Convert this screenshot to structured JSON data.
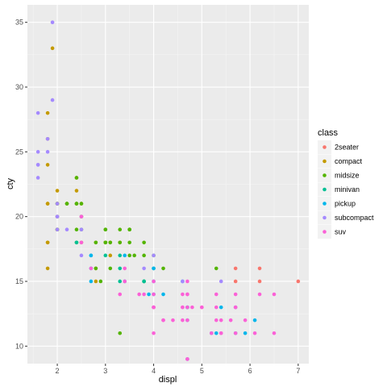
{
  "chart_data": {
    "type": "scatter",
    "xlabel": "displ",
    "ylabel": "cty",
    "xlim": [
      1.38,
      7.22
    ],
    "ylim": [
      8.65,
      36.35
    ],
    "x_ticks": [
      2,
      3,
      4,
      5,
      6,
      7
    ],
    "y_ticks": [
      10,
      15,
      20,
      25,
      30,
      35
    ],
    "grid": true,
    "legend": {
      "title": "class",
      "placement": "right",
      "entries": [
        {
          "name": "2seater",
          "color": "#F8766D"
        },
        {
          "name": "compact",
          "color": "#C49A00"
        },
        {
          "name": "midsize",
          "color": "#53B400"
        },
        {
          "name": "minivan",
          "color": "#00C094"
        },
        {
          "name": "pickup",
          "color": "#00B6EB"
        },
        {
          "name": "subcompact",
          "color": "#A58AFF"
        },
        {
          "name": "suv",
          "color": "#FB61D7"
        }
      ]
    },
    "series": [
      {
        "name": "2seater",
        "color": "#F8766D",
        "points": [
          [
            5.7,
            16
          ],
          [
            5.7,
            15
          ],
          [
            6.2,
            16
          ],
          [
            6.2,
            15
          ],
          [
            7.0,
            15
          ]
        ]
      },
      {
        "name": "compact",
        "color": "#C49A00",
        "points": [
          [
            1.8,
            18
          ],
          [
            1.8,
            21
          ],
          [
            2.0,
            20
          ],
          [
            2.0,
            21
          ],
          [
            2.8,
            16
          ],
          [
            2.8,
            18
          ],
          [
            3.1,
            18
          ],
          [
            1.8,
            18
          ],
          [
            1.8,
            16
          ],
          [
            2.0,
            20
          ],
          [
            2.0,
            19
          ],
          [
            2.8,
            15
          ],
          [
            3.1,
            17
          ],
          [
            1.9,
            33
          ],
          [
            2.0,
            21
          ],
          [
            2.0,
            19
          ],
          [
            2.0,
            22
          ],
          [
            1.8,
            21
          ],
          [
            1.8,
            24
          ],
          [
            1.8,
            26
          ],
          [
            1.8,
            28
          ],
          [
            2.2,
            21
          ],
          [
            2.4,
            21
          ],
          [
            2.5,
            21
          ],
          [
            2.5,
            20
          ],
          [
            2.4,
            23
          ],
          [
            2.4,
            22
          ],
          [
            3.0,
            18
          ],
          [
            3.0,
            18
          ],
          [
            3.3,
            18
          ],
          [
            2.5,
            18
          ]
        ]
      },
      {
        "name": "midsize",
        "color": "#53B400",
        "points": [
          [
            2.4,
            18
          ],
          [
            2.4,
            21
          ],
          [
            3.1,
            18
          ],
          [
            3.5,
            19
          ],
          [
            3.6,
            17
          ],
          [
            2.4,
            19
          ],
          [
            3.0,
            18
          ],
          [
            3.3,
            19
          ],
          [
            3.3,
            18
          ],
          [
            3.5,
            19
          ],
          [
            3.8,
            17
          ],
          [
            3.8,
            18
          ],
          [
            4.0,
            17
          ],
          [
            4.2,
            16
          ],
          [
            2.2,
            21
          ],
          [
            2.2,
            21
          ],
          [
            2.4,
            23
          ],
          [
            2.4,
            21
          ],
          [
            3.0,
            19
          ],
          [
            3.0,
            19
          ],
          [
            3.5,
            19
          ],
          [
            2.5,
            21
          ],
          [
            2.5,
            20
          ],
          [
            3.0,
            18
          ],
          [
            3.5,
            18
          ],
          [
            3.5,
            17
          ],
          [
            2.8,
            18
          ],
          [
            2.8,
            16
          ],
          [
            3.1,
            16
          ],
          [
            2.9,
            15
          ],
          [
            3.8,
            15
          ],
          [
            5.3,
            16
          ],
          [
            3.3,
            11
          ],
          [
            2.0,
            21
          ],
          [
            2.0,
            19
          ],
          [
            2.5,
            19
          ]
        ]
      },
      {
        "name": "minivan",
        "color": "#00C094",
        "points": [
          [
            2.4,
            18
          ],
          [
            3.0,
            17
          ],
          [
            3.3,
            17
          ],
          [
            3.3,
            16
          ],
          [
            3.3,
            15
          ],
          [
            3.8,
            15
          ],
          [
            3.8,
            15
          ],
          [
            4.0,
            16
          ]
        ]
      },
      {
        "name": "pickup",
        "color": "#00B6EB",
        "points": [
          [
            2.7,
            15
          ],
          [
            2.7,
            16
          ],
          [
            2.7,
            17
          ],
          [
            3.4,
            15
          ],
          [
            3.9,
            14
          ],
          [
            4.7,
            13
          ],
          [
            4.7,
            12
          ],
          [
            5.2,
            11
          ],
          [
            5.9,
            11
          ],
          [
            4.0,
            14
          ],
          [
            4.2,
            14
          ],
          [
            4.6,
            15
          ],
          [
            5.4,
            13
          ],
          [
            5.3,
            11
          ],
          [
            5.7,
            11
          ],
          [
            6.1,
            12
          ],
          [
            2.7,
            17
          ],
          [
            3.4,
            17
          ],
          [
            4.0,
            16
          ],
          [
            4.0,
            15
          ],
          [
            4.7,
            13
          ],
          [
            5.7,
            13
          ],
          [
            4.7,
            9
          ]
        ]
      },
      {
        "name": "subcompact",
        "color": "#A58AFF",
        "points": [
          [
            1.6,
            28
          ],
          [
            1.6,
            24
          ],
          [
            1.6,
            25
          ],
          [
            1.6,
            23
          ],
          [
            1.6,
            24
          ],
          [
            1.8,
            26
          ],
          [
            1.8,
            25
          ],
          [
            1.9,
            35
          ],
          [
            1.9,
            29
          ],
          [
            2.0,
            20
          ],
          [
            2.0,
            20
          ],
          [
            2.5,
            20
          ],
          [
            2.5,
            19
          ],
          [
            2.2,
            19
          ],
          [
            2.5,
            17
          ],
          [
            3.8,
            16
          ],
          [
            4.0,
            17
          ],
          [
            4.6,
            15
          ],
          [
            5.4,
            15
          ],
          [
            2.0,
            21
          ],
          [
            2.0,
            19
          ]
        ]
      },
      {
        "name": "suv",
        "color": "#FB61D7",
        "points": [
          [
            4.2,
            12
          ],
          [
            4.6,
            14
          ],
          [
            5.3,
            14
          ],
          [
            5.7,
            13
          ],
          [
            6.5,
            14
          ],
          [
            4.0,
            13
          ],
          [
            4.7,
            14
          ],
          [
            4.7,
            12
          ],
          [
            5.7,
            13
          ],
          [
            6.1,
            11
          ],
          [
            5.3,
            12
          ],
          [
            4.0,
            15
          ],
          [
            4.6,
            13
          ],
          [
            4.7,
            9
          ],
          [
            5.4,
            11
          ],
          [
            3.4,
            15
          ],
          [
            4.0,
            13
          ],
          [
            4.7,
            14
          ],
          [
            5.2,
            11
          ],
          [
            5.9,
            12
          ],
          [
            3.3,
            14
          ],
          [
            3.8,
            14
          ],
          [
            4.0,
            13
          ],
          [
            4.6,
            12
          ],
          [
            5.0,
            13
          ],
          [
            4.2,
            12
          ],
          [
            4.4,
            12
          ],
          [
            4.6,
            13
          ],
          [
            5.4,
            11
          ],
          [
            5.4,
            12
          ],
          [
            5.6,
            12
          ],
          [
            4.0,
            11
          ],
          [
            4.7,
            15
          ],
          [
            4.7,
            13
          ],
          [
            5.7,
            14
          ],
          [
            2.5,
            18
          ],
          [
            3.7,
            14
          ],
          [
            4.7,
            9
          ],
          [
            5.0,
            13
          ],
          [
            5.7,
            11
          ],
          [
            6.5,
            11
          ],
          [
            4.8,
            13
          ],
          [
            5.3,
            13
          ],
          [
            6.2,
            14
          ],
          [
            2.5,
            20
          ],
          [
            2.7,
            16
          ],
          [
            3.4,
            16
          ],
          [
            4.0,
            14
          ],
          [
            4.0,
            13
          ]
        ]
      }
    ]
  }
}
